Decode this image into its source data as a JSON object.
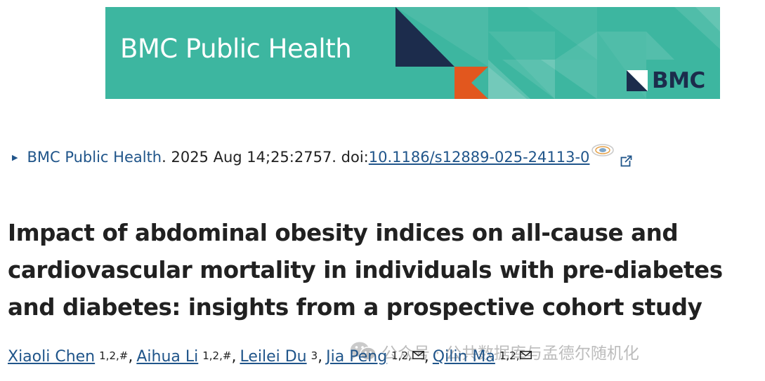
{
  "banner": {
    "journal_title": "BMC Public Health",
    "publisher_logo_text": "BMC",
    "background_color": "#3db6a0",
    "accent_navy": "#1c2c4c",
    "accent_orange": "#e2571e"
  },
  "citation": {
    "journal_link": "BMC Public Health",
    "details": ". 2025 Aug 14;25:2757. doi: ",
    "doi": "10.1186/s12889-025-24113-0",
    "doi_icon": "doi-badge-icon",
    "external_icon": "external-link-icon"
  },
  "article": {
    "title": "Impact of abdominal obesity indices on all-cause and cardiovascular mortality in individuals with pre-diabetes and diabetes: insights from a prospective cohort study"
  },
  "authors": [
    {
      "name": "Xiaoli Chen",
      "affil": "1,2,#",
      "sep": ","
    },
    {
      "name": "Aihua Li",
      "affil": "1,2,#",
      "sep": ","
    },
    {
      "name": "Leilei Du",
      "affil": "3",
      "sep": ","
    },
    {
      "name": "Jia Peng",
      "affil": "1,2,",
      "sep": ",",
      "mail": true
    },
    {
      "name": "Qilin Ma",
      "affil": "1,2,",
      "sep": "",
      "mail": true
    }
  ],
  "watermark": {
    "text": "公众号 · 公共数据库与孟德尔随机化",
    "icon": "wechat-icon"
  },
  "colors": {
    "link": "#20558a",
    "text": "#212121"
  }
}
